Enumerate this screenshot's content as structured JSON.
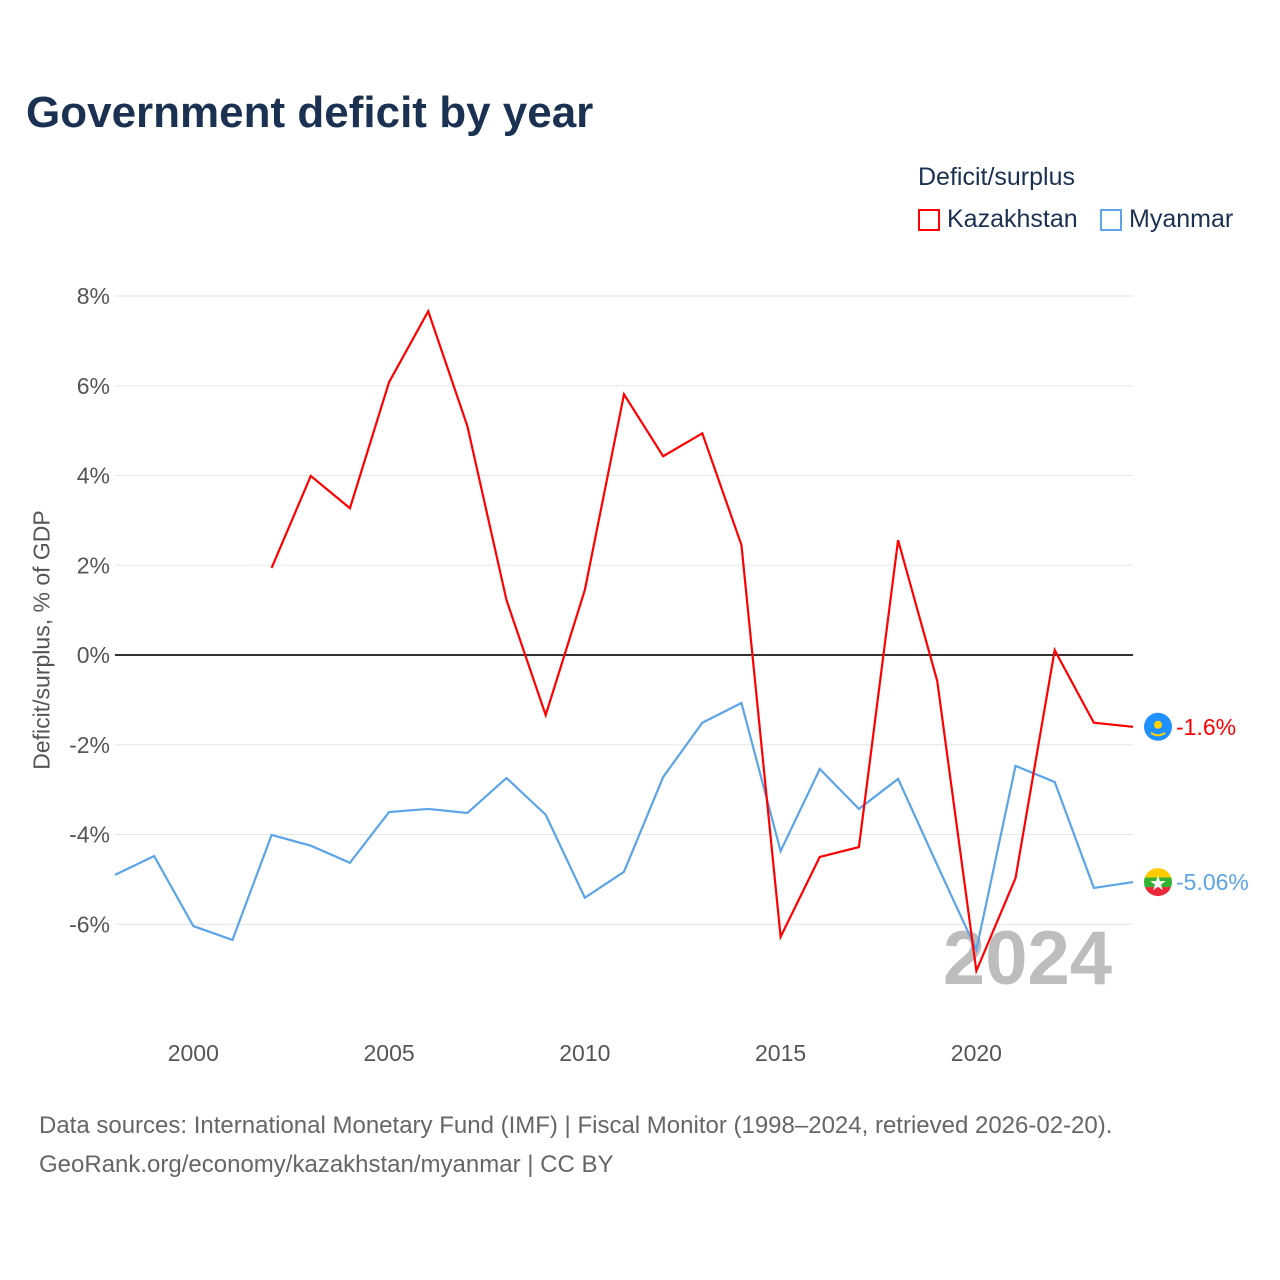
{
  "chart_data": {
    "type": "line",
    "title": "Government deficit by year",
    "ylabel": "Deficit/surplus, % of GDP",
    "xlabel": "",
    "legend_title": "Deficit/surplus",
    "legend_position": "top-right",
    "xlim": [
      1998,
      2024
    ],
    "ylim": [
      -8,
      8
    ],
    "x_ticks": [
      2000,
      2005,
      2010,
      2015,
      2020
    ],
    "y_ticks": [
      8,
      6,
      4,
      2,
      0,
      -2,
      -4,
      -6
    ],
    "y_tick_labels": [
      "8%",
      "6%",
      "4%",
      "2%",
      "0%",
      "-2%",
      "-4%",
      "-6%"
    ],
    "grid": true,
    "year_watermark": "2024",
    "series": [
      {
        "name": "Kazakhstan",
        "color": "#ff0000",
        "end_label": "-1.6%",
        "x": [
          2002,
          2003,
          2004,
          2005,
          2006,
          2007,
          2008,
          2009,
          2010,
          2011,
          2012,
          2013,
          2014,
          2015,
          2016,
          2017,
          2018,
          2019,
          2020,
          2021,
          2022,
          2023,
          2024
        ],
        "values": [
          1.94,
          3.99,
          3.27,
          6.08,
          7.66,
          5.1,
          1.22,
          -1.34,
          1.45,
          5.81,
          4.43,
          4.94,
          2.45,
          -6.28,
          -4.5,
          -4.28,
          2.56,
          -0.58,
          -7.04,
          -4.97,
          0.11,
          -1.51,
          -1.6
        ]
      },
      {
        "name": "Myanmar",
        "color": "#5ba4e8",
        "end_label": "-5.06%",
        "x": [
          1998,
          1999,
          2000,
          2001,
          2002,
          2003,
          2004,
          2005,
          2006,
          2007,
          2008,
          2009,
          2010,
          2011,
          2012,
          2013,
          2014,
          2015,
          2016,
          2017,
          2018,
          2019,
          2020,
          2021,
          2022,
          2023,
          2024
        ],
        "values": [
          -4.9,
          -4.48,
          -6.04,
          -6.35,
          -4.01,
          -4.25,
          -4.63,
          -3.5,
          -3.43,
          -3.52,
          -2.74,
          -3.56,
          -5.41,
          -4.83,
          -2.72,
          -1.51,
          -1.07,
          -4.37,
          -2.54,
          -3.43,
          -2.76,
          -4.68,
          -6.57,
          -2.47,
          -2.83,
          -5.19,
          -5.06
        ]
      }
    ]
  },
  "source": {
    "line1": "Data sources: International Monetary Fund (IMF) | Fiscal Monitor (1998–2024, retrieved 2026-02-20).",
    "line2": "GeoRank.org/economy/kazakhstan/myanmar | CC BY"
  }
}
